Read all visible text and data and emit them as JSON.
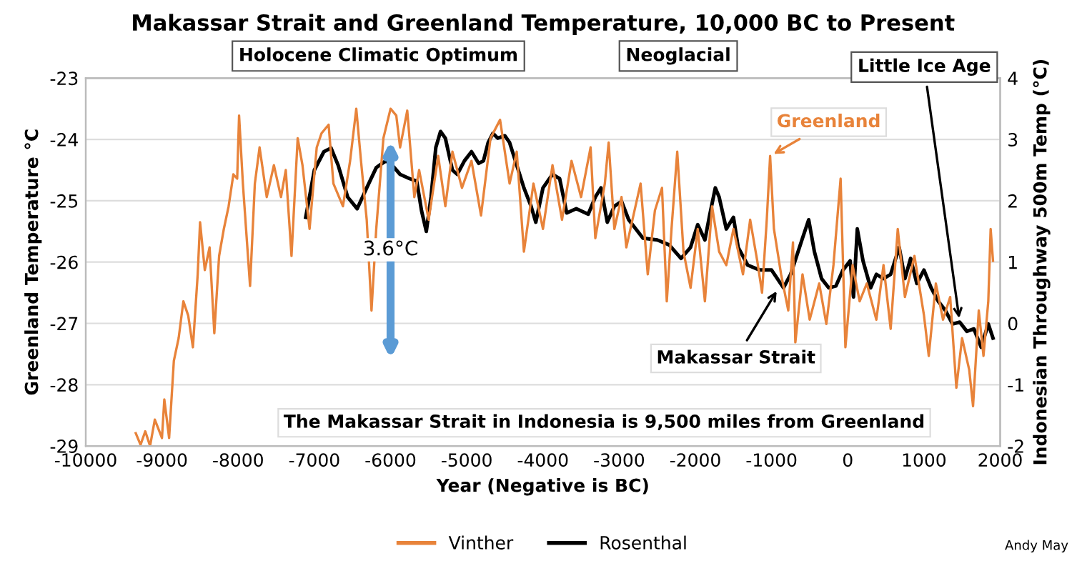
{
  "chart_data": {
    "type": "line",
    "title": "Makassar Strait and Greenland Temperature, 10,000 BC to Present",
    "xlabel": "Year (Negative is BC)",
    "ylabel": "Greenland Temperature °C",
    "y2label": "Indonesian Throughway 500m Temp (°C)",
    "xlim": [
      -10000,
      2000
    ],
    "xticks": [
      -10000,
      -9000,
      -8000,
      -7000,
      -6000,
      -5000,
      -4000,
      -3000,
      -2000,
      -1000,
      0,
      1000,
      2000
    ],
    "ylim": [
      -29,
      -23
    ],
    "yticks": [
      -29,
      -28,
      -27,
      -26,
      -25,
      -24,
      -23
    ],
    "y2lim": [
      -2,
      4
    ],
    "y2ticks": [
      -2,
      -1,
      0,
      1,
      2,
      3,
      4
    ],
    "grid": true,
    "legend": "bottom",
    "line_style": "solid",
    "series": [
      {
        "name": "Vinther",
        "color": "#e8833a",
        "x": [
          -9344,
          -9281,
          -9219,
          -9156,
          -9094,
          -9000,
          -8969,
          -8906,
          -8844,
          -8781,
          -8719,
          -8656,
          -8594,
          -8531,
          -8500,
          -8438,
          -8375,
          -8313,
          -8250,
          -8188,
          -8125,
          -8063,
          -8013,
          -7988,
          -7938,
          -7844,
          -7781,
          -7719,
          -7625,
          -7531,
          -7438,
          -7375,
          -7300,
          -7219,
          -7156,
          -7063,
          -6969,
          -6906,
          -6813,
          -6750,
          -6625,
          -6531,
          -6450,
          -6388,
          -6313,
          -6250,
          -6188,
          -6094,
          -6000,
          -5925,
          -5875,
          -5781,
          -5688,
          -5625,
          -5500,
          -5375,
          -5281,
          -5188,
          -5063,
          -4938,
          -4813,
          -4688,
          -4563,
          -4438,
          -4344,
          -4250,
          -4125,
          -4000,
          -3875,
          -3750,
          -3625,
          -3500,
          -3375,
          -3313,
          -3188,
          -3138,
          -3063,
          -2969,
          -2906,
          -2813,
          -2719,
          -2625,
          -2531,
          -2438,
          -2375,
          -2313,
          -2238,
          -2156,
          -2063,
          -1969,
          -1875,
          -1781,
          -1688,
          -1594,
          -1500,
          -1375,
          -1281,
          -1188,
          -1125,
          -1063,
          -1019,
          -969,
          -875,
          -781,
          -719,
          -688,
          -594,
          -500,
          -375,
          -281,
          -188,
          -94,
          -31,
          63,
          156,
          250,
          375,
          469,
          563,
          656,
          750,
          875,
          1000,
          1063,
          1156,
          1250,
          1344,
          1425,
          1500,
          1594,
          1644,
          1719,
          1781,
          1844,
          1875,
          1906
        ],
        "values": [
          -28.79,
          -28.98,
          -28.76,
          -29.0,
          -28.57,
          -28.87,
          -28.24,
          -28.87,
          -27.61,
          -27.24,
          -26.64,
          -26.87,
          -27.39,
          -26.2,
          -25.35,
          -26.13,
          -25.76,
          -27.16,
          -25.9,
          -25.46,
          -25.09,
          -24.57,
          -24.64,
          -23.61,
          -24.72,
          -26.39,
          -24.72,
          -24.13,
          -24.94,
          -24.42,
          -24.94,
          -24.5,
          -25.9,
          -23.98,
          -24.42,
          -25.46,
          -24.13,
          -23.9,
          -23.76,
          -24.72,
          -25.09,
          -24.35,
          -23.5,
          -24.35,
          -25.31,
          -26.79,
          -25.46,
          -23.98,
          -23.5,
          -23.61,
          -24.13,
          -23.53,
          -24.94,
          -24.5,
          -25.31,
          -24.27,
          -25.09,
          -24.2,
          -24.79,
          -24.35,
          -25.24,
          -23.98,
          -23.68,
          -24.72,
          -24.2,
          -25.83,
          -24.72,
          -25.46,
          -24.42,
          -25.31,
          -24.35,
          -24.94,
          -24.13,
          -25.61,
          -24.72,
          -24.05,
          -25.46,
          -24.94,
          -25.76,
          -25.24,
          -24.72,
          -26.2,
          -25.16,
          -24.79,
          -26.64,
          -25.46,
          -24.2,
          -25.83,
          -26.42,
          -25.46,
          -26.64,
          -25.09,
          -25.83,
          -26.05,
          -25.46,
          -26.2,
          -25.31,
          -25.98,
          -26.5,
          -25.31,
          -24.27,
          -25.46,
          -26.2,
          -26.79,
          -25.68,
          -27.31,
          -26.2,
          -26.94,
          -26.35,
          -27.01,
          -26.05,
          -24.64,
          -27.39,
          -26.05,
          -26.64,
          -26.35,
          -26.94,
          -26.05,
          -27.09,
          -25.46,
          -26.57,
          -25.9,
          -26.87,
          -27.53,
          -26.35,
          -26.94,
          -26.57,
          -28.05,
          -27.24,
          -27.76,
          -28.35,
          -26.79,
          -27.53,
          -26.64,
          -25.46,
          -25.98
        ]
      },
      {
        "name": "Rosenthal",
        "color": "#000000",
        "axis": "y2",
        "x": [
          -7113,
          -7000,
          -6875,
          -6781,
          -6688,
          -6563,
          -6438,
          -6313,
          -6188,
          -6063,
          -6000,
          -5875,
          -5750,
          -5656,
          -5594,
          -5531,
          -5469,
          -5406,
          -5344,
          -5281,
          -5188,
          -5125,
          -5031,
          -4938,
          -4844,
          -4781,
          -4719,
          -4656,
          -4594,
          -4500,
          -4438,
          -4344,
          -4250,
          -4156,
          -4094,
          -4000,
          -3875,
          -3781,
          -3688,
          -3563,
          -3406,
          -3313,
          -3238,
          -3156,
          -3063,
          -2969,
          -2875,
          -2688,
          -2500,
          -2344,
          -2188,
          -2063,
          -1969,
          -1875,
          -1813,
          -1738,
          -1688,
          -1594,
          -1500,
          -1438,
          -1313,
          -1156,
          -1000,
          -844,
          -750,
          -594,
          -513,
          -438,
          -344,
          -250,
          -156,
          -63,
          31,
          75,
          125,
          200,
          300,
          375,
          469,
          563,
          675,
          750,
          825,
          906,
          1000,
          1094,
          1188,
          1281,
          1375,
          1469,
          1563,
          1656,
          1750,
          1844,
          1906
        ],
        "values": [
          1.73,
          2.5,
          2.8,
          2.86,
          2.58,
          2.06,
          1.87,
          2.21,
          2.54,
          2.65,
          2.61,
          2.43,
          2.36,
          2.32,
          1.84,
          1.5,
          2.06,
          2.87,
          3.13,
          3.02,
          2.5,
          2.43,
          2.65,
          2.8,
          2.61,
          2.65,
          2.95,
          3.1,
          3.02,
          3.06,
          2.95,
          2.58,
          2.21,
          1.91,
          1.65,
          2.21,
          2.43,
          2.36,
          1.8,
          1.87,
          1.78,
          2.06,
          2.21,
          1.65,
          1.91,
          1.99,
          1.69,
          1.39,
          1.36,
          1.28,
          1.06,
          1.24,
          1.61,
          1.36,
          1.76,
          2.21,
          2.06,
          1.54,
          1.73,
          1.24,
          0.95,
          0.87,
          0.87,
          0.58,
          0.8,
          1.39,
          1.69,
          1.17,
          0.73,
          0.58,
          0.61,
          0.87,
          1.02,
          0.43,
          1.54,
          1.02,
          0.58,
          0.8,
          0.73,
          0.8,
          1.24,
          0.73,
          1.06,
          0.65,
          0.87,
          0.58,
          0.36,
          0.21,
          -0.01,
          0.02,
          -0.13,
          -0.09,
          -0.39,
          -0.01,
          -0.24
        ]
      }
    ],
    "annotations": [
      "Holocene Climatic Optimum",
      "Neoglacial",
      {
        "text": "Little Ice Age",
        "x": 1469,
        "y": -26.98
      },
      {
        "text": "Greenland",
        "x": -1019,
        "y": -24.27
      },
      {
        "text": "Makassar Strait",
        "x": -906,
        "y": -26.42
      },
      {
        "text": "3.6°C",
        "x": -6000,
        "y": -25.8
      },
      "The Makassar Strait in Indonesia is 9,500 miles from Greenland",
      "Andy May"
    ]
  }
}
